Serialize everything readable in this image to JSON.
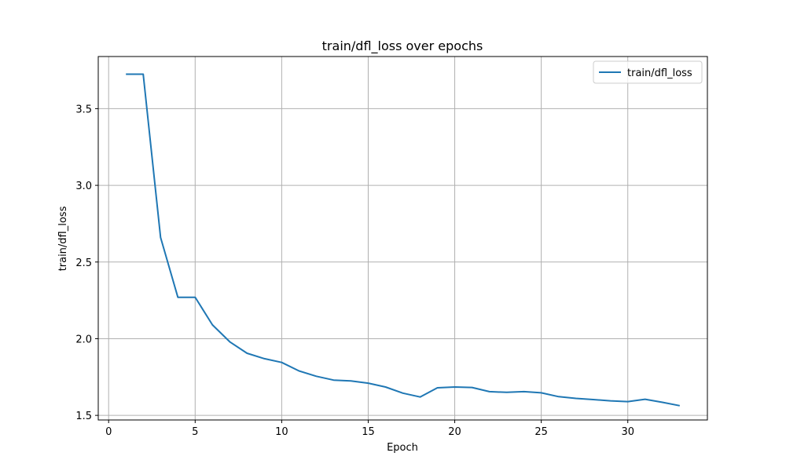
{
  "chart_data": {
    "type": "line",
    "title": "train/dfl_loss over epochs",
    "xlabel": "Epoch",
    "ylabel": "train/dfl_loss",
    "xlim": [
      -0.6,
      34.6
    ],
    "ylim": [
      1.47,
      3.84
    ],
    "xticks": [
      0,
      5,
      10,
      15,
      20,
      25,
      30
    ],
    "yticks": [
      1.5,
      2.0,
      2.5,
      3.0,
      3.5
    ],
    "grid": true,
    "legend_position": "top-right",
    "series": [
      {
        "name": "train/dfl_loss",
        "color": "#1f77b4",
        "x": [
          1,
          2,
          3,
          4,
          5,
          6,
          7,
          8,
          9,
          10,
          11,
          12,
          13,
          14,
          15,
          16,
          17,
          18,
          19,
          20,
          21,
          22,
          23,
          24,
          25,
          26,
          27,
          28,
          29,
          30,
          31,
          32,
          33
        ],
        "values": [
          3.725,
          3.725,
          2.66,
          2.27,
          2.27,
          2.09,
          1.98,
          1.905,
          1.87,
          1.845,
          1.79,
          1.755,
          1.73,
          1.725,
          1.71,
          1.685,
          1.645,
          1.62,
          1.68,
          1.685,
          1.682,
          1.655,
          1.65,
          1.655,
          1.647,
          1.622,
          1.611,
          1.603,
          1.595,
          1.59,
          1.605,
          1.585,
          1.563
        ]
      }
    ]
  }
}
